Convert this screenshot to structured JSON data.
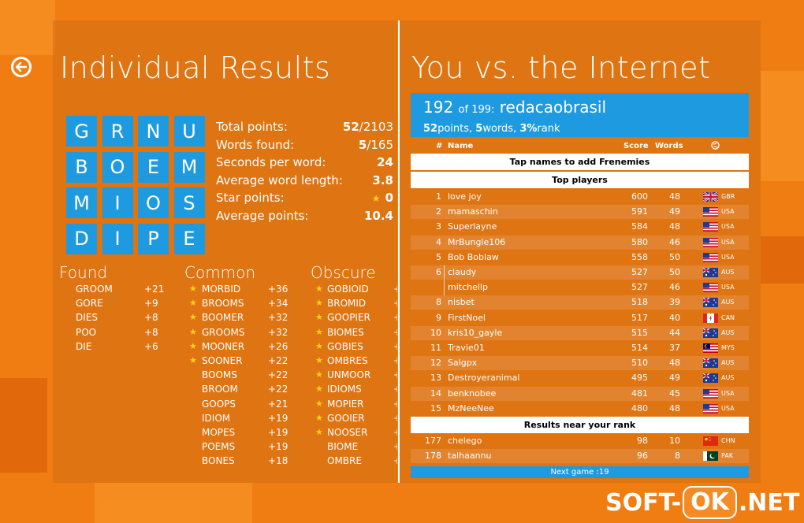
{
  "left": {
    "title": "Individual Results",
    "tiles": [
      "G",
      "R",
      "N",
      "U",
      "B",
      "O",
      "E",
      "M",
      "M",
      "I",
      "O",
      "S",
      "D",
      "I",
      "P",
      "E"
    ],
    "stats": [
      {
        "label": "Total points:",
        "value": "52",
        "suffix": "/2103"
      },
      {
        "label": "Words found:",
        "value": "5",
        "suffix": "/165"
      },
      {
        "label": "Seconds per word:",
        "value": "24",
        "suffix": ""
      },
      {
        "label": "Average word length:",
        "value": "3.8",
        "suffix": ""
      },
      {
        "label": "Star points:",
        "value": "0",
        "suffix": "",
        "star": true
      },
      {
        "label": "Average points:",
        "value": "10.4",
        "suffix": ""
      }
    ],
    "found": {
      "title": "Found",
      "words": [
        {
          "w": "GROOM",
          "p": "+21"
        },
        {
          "w": "GORE",
          "p": "+9"
        },
        {
          "w": "DIES",
          "p": "+8"
        },
        {
          "w": "POO",
          "p": "+8"
        },
        {
          "w": "DIE",
          "p": "+6"
        }
      ]
    },
    "common": {
      "title": "Common",
      "words": [
        {
          "w": "MORBID",
          "p": "+36",
          "star": true
        },
        {
          "w": "BROOMS",
          "p": "+34",
          "star": true
        },
        {
          "w": "BOOMER",
          "p": "+32",
          "star": true
        },
        {
          "w": "GROOMS",
          "p": "+32",
          "star": true
        },
        {
          "w": "MOONER",
          "p": "+26",
          "star": true
        },
        {
          "w": "SOONER",
          "p": "+22",
          "star": true
        },
        {
          "w": "BOOMS",
          "p": "+22",
          "star": false
        },
        {
          "w": "BROOM",
          "p": "+22",
          "star": false
        },
        {
          "w": "GOOPS",
          "p": "+21",
          "star": false
        },
        {
          "w": "IDIOM",
          "p": "+19",
          "star": false
        },
        {
          "w": "MOPES",
          "p": "+19",
          "star": false
        },
        {
          "w": "POEMS",
          "p": "+19",
          "star": false
        },
        {
          "w": "BONES",
          "p": "+18",
          "star": false
        }
      ]
    },
    "obscure": {
      "title": "Obscure",
      "words": [
        {
          "w": "GOBIOID",
          "p": "+",
          "star": true
        },
        {
          "w": "BROMID",
          "p": "+",
          "star": true
        },
        {
          "w": "GOOPIER",
          "p": "+",
          "star": true
        },
        {
          "w": "BIOMES",
          "p": "+",
          "star": true
        },
        {
          "w": "GOBIES",
          "p": "+",
          "star": true
        },
        {
          "w": "OMBRES",
          "p": "+",
          "star": true
        },
        {
          "w": "UNMOOR",
          "p": "+",
          "star": true
        },
        {
          "w": "IDIOMS",
          "p": "+",
          "star": true
        },
        {
          "w": "MOPIER",
          "p": "+",
          "star": true
        },
        {
          "w": "GOOIER",
          "p": "+",
          "star": true
        },
        {
          "w": "NOOSER",
          "p": "+",
          "star": true
        },
        {
          "w": "BIOME",
          "p": "+",
          "star": false
        },
        {
          "w": "OMBRE",
          "p": "+",
          "star": false
        }
      ]
    }
  },
  "right": {
    "title": "You vs. the Internet",
    "rank": {
      "position": "192",
      "of_text": "of 199:",
      "username": "redacaobrasil",
      "points": "52",
      "points_label": "points,",
      "words": "5",
      "words_label": "words,",
      "rank_pct": "3%",
      "rank_label": "rank"
    },
    "headers": {
      "rank": "#",
      "name": "Name",
      "score": "Score",
      "words": "Words"
    },
    "frenemies_text": "Tap names to add Frenemies",
    "top_players_text": "Top players",
    "near_rank_text": "Results near your rank",
    "next_game": "Next game :19",
    "top_players": [
      {
        "rank": "1",
        "name": "love joy",
        "score": "600",
        "words": "48",
        "flag": "gbr",
        "country": "GBR"
      },
      {
        "rank": "2",
        "name": "mamaschin",
        "score": "591",
        "words": "49",
        "flag": "usa",
        "country": "USA"
      },
      {
        "rank": "3",
        "name": "Superlayne",
        "score": "584",
        "words": "48",
        "flag": "usa",
        "country": "USA"
      },
      {
        "rank": "4",
        "name": "MrBungle106",
        "score": "580",
        "words": "46",
        "flag": "usa",
        "country": "USA"
      },
      {
        "rank": "5",
        "name": "Bob Boblaw",
        "score": "558",
        "words": "50",
        "flag": "usa",
        "country": "USA"
      },
      {
        "rank": "6",
        "name": "claudy",
        "score": "527",
        "words": "50",
        "flag": "aus",
        "country": "AUS"
      },
      {
        "rank": "",
        "name": "mitchellp",
        "score": "527",
        "words": "46",
        "flag": "usa",
        "country": "USA"
      },
      {
        "rank": "8",
        "name": "nisbet",
        "score": "518",
        "words": "39",
        "flag": "aus",
        "country": "AUS"
      },
      {
        "rank": "9",
        "name": "FirstNoel",
        "score": "517",
        "words": "40",
        "flag": "can",
        "country": "CAN"
      },
      {
        "rank": "10",
        "name": "kris10_gayle",
        "score": "515",
        "words": "44",
        "flag": "aus",
        "country": "AUS"
      },
      {
        "rank": "11",
        "name": "Travie01",
        "score": "514",
        "words": "37",
        "flag": "mys",
        "country": "MYS"
      },
      {
        "rank": "12",
        "name": "Salgpx",
        "score": "510",
        "words": "48",
        "flag": "aus",
        "country": "AUS"
      },
      {
        "rank": "13",
        "name": "Destroyeranimal",
        "score": "495",
        "words": "49",
        "flag": "aus",
        "country": "AUS"
      },
      {
        "rank": "14",
        "name": "benknobee",
        "score": "481",
        "words": "45",
        "flag": "usa",
        "country": "USA"
      },
      {
        "rank": "15",
        "name": "MzNeeNee",
        "score": "480",
        "words": "48",
        "flag": "usa",
        "country": "USA"
      }
    ],
    "near_players": [
      {
        "rank": "177",
        "name": "chelego",
        "score": "98",
        "words": "10",
        "flag": "chn",
        "country": "CHN"
      },
      {
        "rank": "178",
        "name": "talhaannu",
        "score": "96",
        "words": "8",
        "flag": "pak",
        "country": "PAK"
      }
    ]
  },
  "watermark": {
    "pre": "SOFT-",
    "ok": "OK",
    "post": ".NET"
  },
  "colors": {
    "accent": "#1e9be0",
    "background": "#f07d12",
    "star": "#ffd21a"
  }
}
